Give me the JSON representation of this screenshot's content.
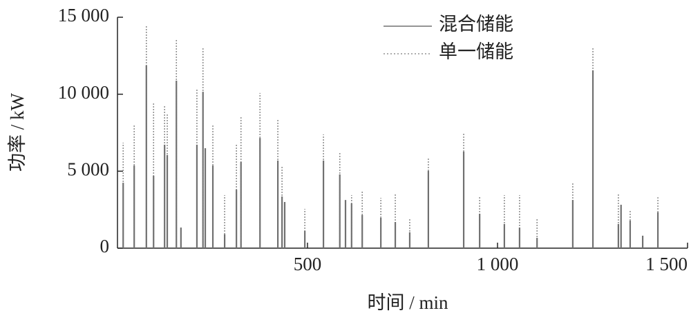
{
  "chart_data": {
    "type": "stem",
    "xlabel": "时间 / min",
    "ylabel": "功率 / kW",
    "xlim": [
      0,
      1500
    ],
    "ylim": [
      0,
      15000
    ],
    "xticks": [
      500,
      {
        "value": 1000,
        "label": "1 000"
      },
      {
        "value": 1500,
        "label": "1 500"
      }
    ],
    "yticks": [
      0,
      {
        "value": 5000,
        "label": "5 000"
      },
      {
        "value": 10000,
        "label": "10 000"
      },
      {
        "value": 15000,
        "label": "15 000"
      }
    ],
    "legend": "upper right",
    "series": [
      {
        "name": "混合储能",
        "color": "#707070",
        "style": "solid",
        "x": [
          15,
          44,
          76,
          95,
          124,
          131,
          155,
          167,
          209,
          225,
          231,
          251,
          282,
          313,
          325,
          375,
          422,
          433,
          440,
          493,
          542,
          585,
          600,
          616,
          644,
          693,
          731,
          769,
          818,
          911,
          953,
          1018,
          1058,
          1104,
          1198,
          1251,
          1318,
          1325,
          1349,
          1382,
          1422
        ],
        "values": [
          4250,
          5370,
          11870,
          4700,
          6720,
          6050,
          10880,
          1340,
          6720,
          10160,
          6490,
          5370,
          900,
          3800,
          5600,
          7160,
          5690,
          3360,
          3000,
          1120,
          5690,
          4790,
          3130,
          2910,
          2150,
          1970,
          1700,
          1030,
          5020,
          6270,
          2240,
          1570,
          1340,
          670,
          3130,
          11550,
          1570,
          2820,
          1790,
          810,
          2330
        ]
      },
      {
        "name": "单一储能",
        "color": "#909090",
        "style": "dotted",
        "x": [
          15,
          44,
          76,
          95,
          124,
          131,
          155,
          209,
          225,
          251,
          282,
          313,
          325,
          375,
          422,
          433,
          493,
          542,
          585,
          616,
          644,
          693,
          731,
          769,
          818,
          911,
          953,
          1018,
          1058,
          1104,
          1198,
          1251,
          1318,
          1349,
          1422
        ],
        "values": [
          6850,
          7970,
          14460,
          9490,
          9310,
          8730,
          13520,
          10390,
          12990,
          8060,
          3450,
          6720,
          8510,
          10080,
          8330,
          5370,
          2550,
          7390,
          6270,
          3450,
          3670,
          3270,
          3490,
          1970,
          5910,
          7520,
          3360,
          3450,
          3450,
          1880,
          4250,
          13070,
          3580,
          2420,
          3310
        ]
      }
    ]
  }
}
